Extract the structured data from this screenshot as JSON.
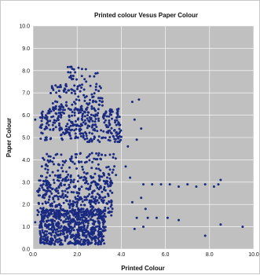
{
  "chart_data": {
    "type": "scatter",
    "title": "Printed colour Vesus Paper Colour",
    "xlabel": "Printed Colour",
    "ylabel": "Paper Colour",
    "xlim": [
      0,
      10
    ],
    "ylim": [
      0,
      10
    ],
    "x_ticks": [
      "0.0",
      "2.0",
      "4.0",
      "6.0",
      "8.0",
      "10.0"
    ],
    "y_ticks": [
      "0.0",
      "1.0",
      "2.0",
      "3.0",
      "4.0",
      "5.0",
      "6.0",
      "7.0",
      "8.0",
      "9.0",
      "10.0"
    ],
    "grid": true,
    "legend": "none",
    "marker_color": "#1a2a80",
    "background_color": "#c0c0c0",
    "clusters": [
      {
        "x_range": [
          0.3,
          3.3
        ],
        "y_range": [
          0.2,
          1.8
        ],
        "count": 650
      },
      {
        "x_range": [
          0.2,
          3.6
        ],
        "y_range": [
          1.5,
          3.3
        ],
        "count": 380
      },
      {
        "x_range": [
          0.4,
          3.8
        ],
        "y_range": [
          3.2,
          4.3
        ],
        "count": 110
      },
      {
        "x_range": [
          0.3,
          4.0
        ],
        "y_range": [
          4.8,
          6.3
        ],
        "count": 320
      },
      {
        "x_range": [
          0.8,
          3.2
        ],
        "y_range": [
          6.2,
          7.4
        ],
        "count": 110
      },
      {
        "x_range": [
          1.5,
          3.0
        ],
        "y_range": [
          7.5,
          8.2
        ],
        "count": 25
      }
    ],
    "points": [
      [
        4.5,
        6.6
      ],
      [
        4.8,
        6.7
      ],
      [
        4.6,
        5.8
      ],
      [
        4.9,
        5.4
      ],
      [
        4.7,
        4.9
      ],
      [
        4.3,
        4.6
      ],
      [
        4.2,
        3.7
      ],
      [
        4.4,
        3.2
      ],
      [
        4.5,
        2.1
      ],
      [
        4.7,
        1.4
      ],
      [
        5.0,
        2.9
      ],
      [
        5.4,
        2.9
      ],
      [
        5.8,
        2.9
      ],
      [
        6.2,
        2.9
      ],
      [
        6.6,
        2.8
      ],
      [
        7.0,
        2.9
      ],
      [
        7.4,
        2.8
      ],
      [
        7.8,
        2.9
      ],
      [
        8.2,
        2.8
      ],
      [
        8.4,
        2.9
      ],
      [
        8.5,
        3.1
      ],
      [
        5.2,
        1.4
      ],
      [
        5.6,
        1.4
      ],
      [
        6.1,
        1.4
      ],
      [
        6.6,
        1.3
      ],
      [
        5.0,
        1.0
      ],
      [
        4.6,
        0.9
      ],
      [
        5.1,
        1.8
      ],
      [
        4.9,
        2.3
      ],
      [
        7.8,
        0.6
      ],
      [
        8.5,
        1.1
      ],
      [
        9.5,
        1.0
      ],
      [
        0.1,
        5.8
      ],
      [
        0.1,
        1.2
      ],
      [
        0.2,
        2.6
      ]
    ]
  }
}
